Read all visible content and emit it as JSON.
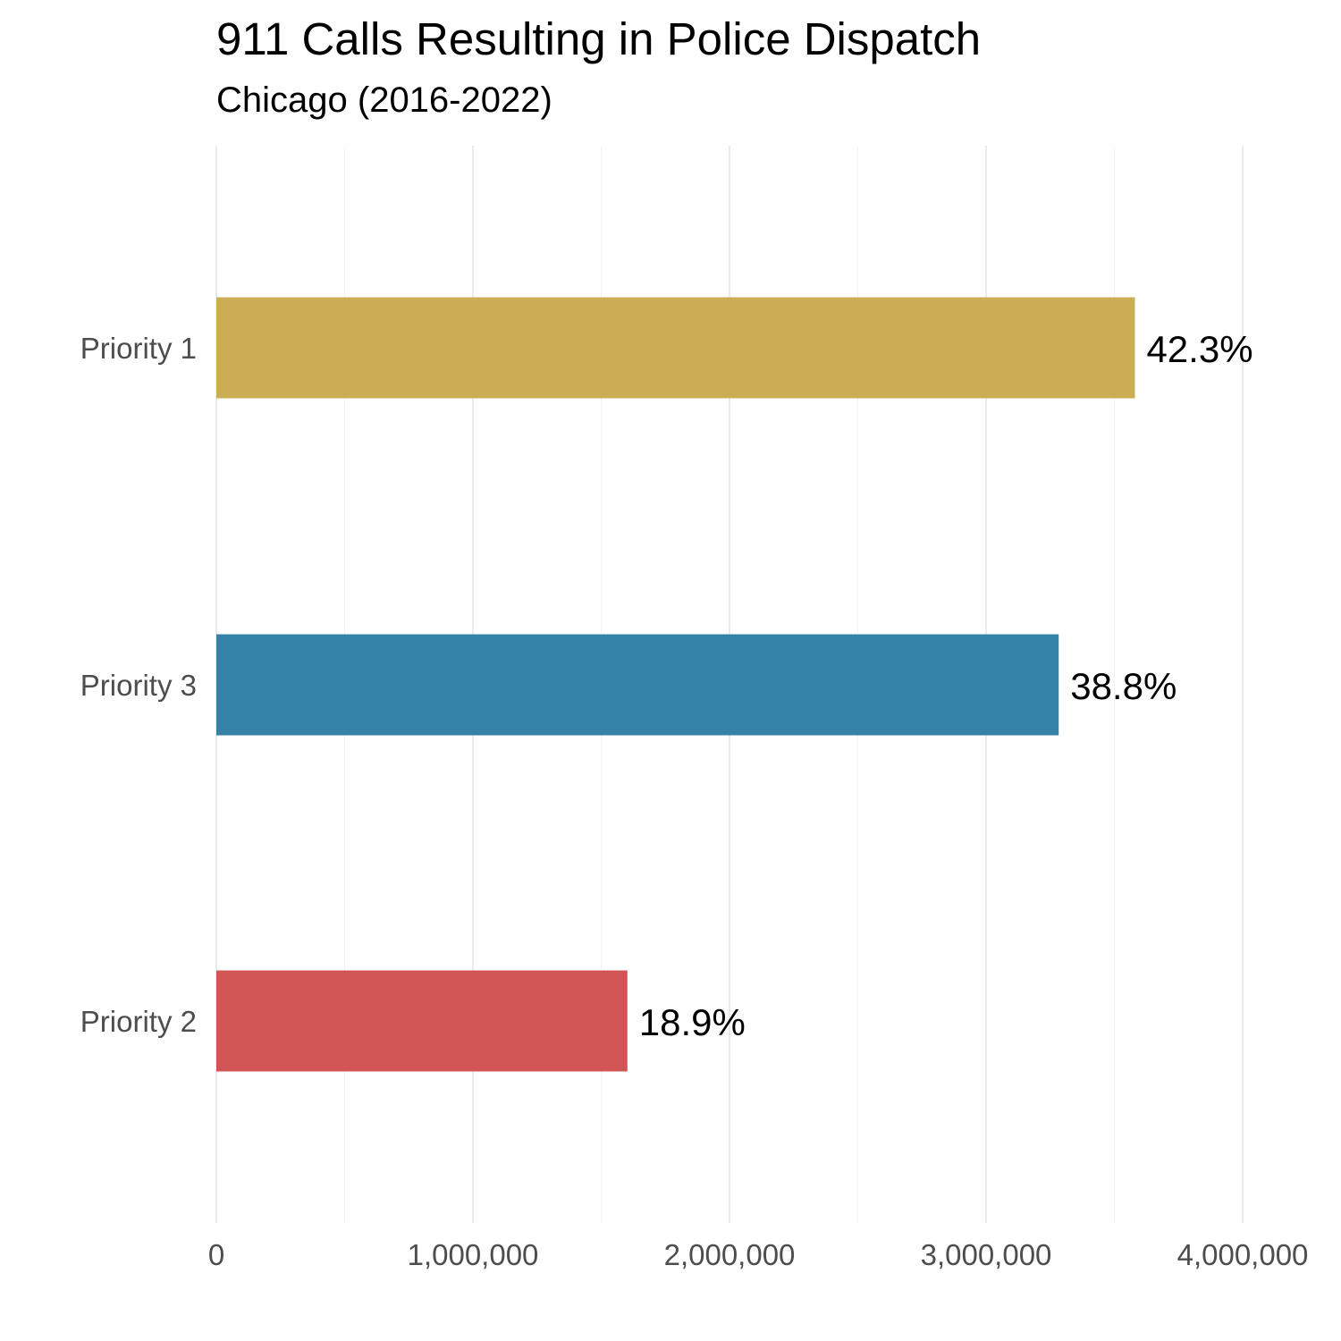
{
  "chart_data": {
    "type": "bar",
    "orientation": "horizontal",
    "title": "911 Calls Resulting in Police Dispatch",
    "subtitle": "Chicago (2016-2022)",
    "xlabel": "",
    "ylabel": "",
    "categories": [
      "Priority 1",
      "Priority 3",
      "Priority 2"
    ],
    "values": [
      3580000,
      3283000,
      1602000
    ],
    "labels": [
      "42.3%",
      "38.8%",
      "18.9%"
    ],
    "colors": [
      "#c9ab4e",
      "#2e7ea6",
      "#d05050"
    ],
    "xlim": [
      0,
      4000000
    ],
    "xticks": [
      0,
      1000000,
      2000000,
      3000000,
      4000000
    ],
    "xtick_labels": [
      "0",
      "1,000,000",
      "2,000,000",
      "3,000,000",
      "4,000,000"
    ],
    "grid": "vertical",
    "legend": "none"
  }
}
